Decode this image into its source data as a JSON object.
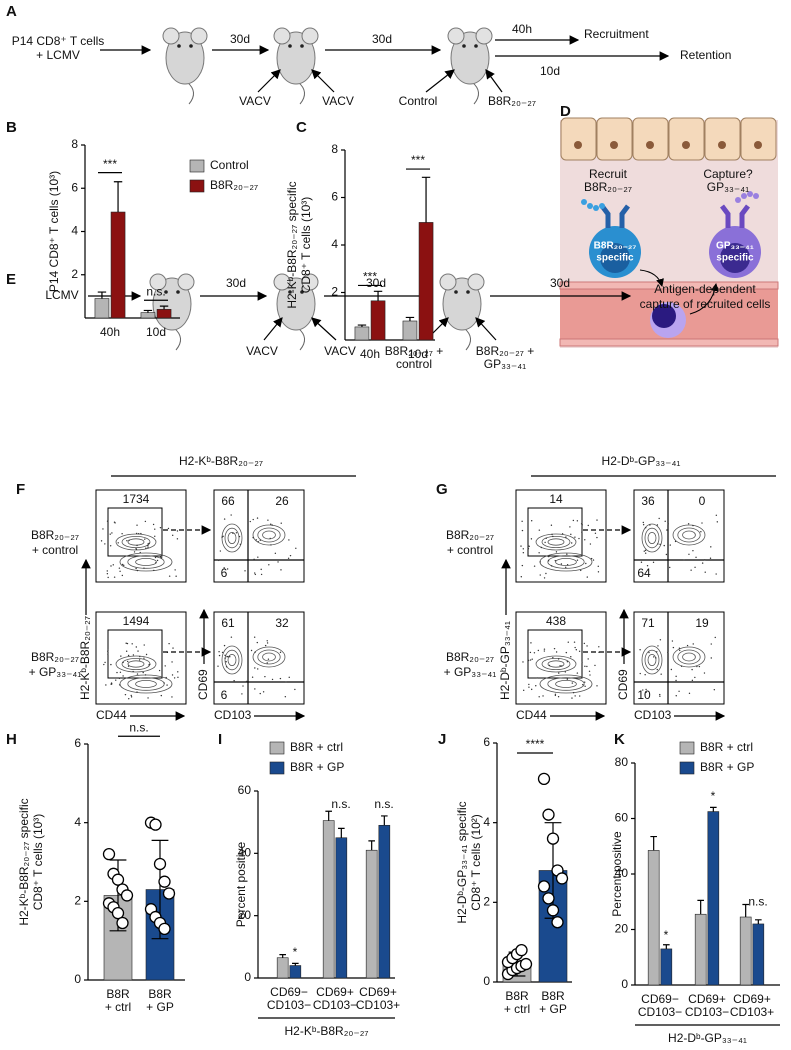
{
  "panel_a": {
    "label": "A",
    "input": [
      "P14 CD8⁺ T cells",
      "+ LCMV"
    ],
    "intervals": [
      "30d",
      "30d"
    ],
    "injections": [
      "VACV",
      "VACV",
      "Control",
      "B8R₂₀₋₂₇"
    ],
    "outcomes": [
      {
        "time": "40h",
        "name": "Recruitment"
      },
      {
        "time": "10d",
        "name": "Retention"
      }
    ]
  },
  "panel_d": {
    "label": "D",
    "left": [
      "Recruit",
      "B8R₂₀₋₂₇"
    ],
    "right": [
      "Capture?",
      "GP₃₃₋₄₁"
    ],
    "cells": [
      [
        "B8R₂₀₋₂₇",
        "specific"
      ],
      [
        "GP₃₃₋₄₁",
        "specific"
      ]
    ]
  },
  "panel_e": {
    "label": "E",
    "input": "LCMV",
    "intervals": [
      "30d",
      "30d",
      "30d"
    ],
    "injections": [
      [
        "VACV"
      ],
      [
        "VACV"
      ],
      [
        "B8R₂₀₋₂₇ +",
        "control"
      ],
      [
        "B8R₂₀₋₂₇ +",
        "GP₃₃₋₄₁"
      ]
    ],
    "outcome": [
      "Antigen-dependent",
      "capture of recruited cells"
    ]
  },
  "panel_f": {
    "label": "F",
    "title": "H2-Kᵇ-B8R₂₀₋₂₇",
    "rows": [
      {
        "label": [
          "B8R₂₀₋₂₇",
          "+ control"
        ],
        "gate": 1734,
        "quadrants": [
          66,
          26,
          6
        ]
      },
      {
        "label": [
          "B8R₂₀₋₂₇",
          "+ GP₃₃₋₄₁"
        ],
        "gate": 1494,
        "quadrants": [
          61,
          32,
          6
        ]
      }
    ],
    "x_axes": [
      "CD44",
      "CD103"
    ],
    "y_axes": [
      "H2-Kᵇ-B8R₂₀₋₂₇",
      "CD69"
    ]
  },
  "panel_g": {
    "label": "G",
    "title": "H2-Dᵇ-GP₃₃₋₄₁",
    "rows": [
      {
        "label": [
          "B8R₂₀₋₂₇",
          "+ control"
        ],
        "gate": 14,
        "quadrants": [
          36,
          0,
          64
        ]
      },
      {
        "label": [
          "B8R₂₀₋₂₇",
          "+ GP₃₃₋₄₁"
        ],
        "gate": 438,
        "quadrants": [
          71,
          19,
          10
        ]
      }
    ],
    "x_axes": [
      "CD44",
      "CD103"
    ],
    "y_axes": [
      "H2-Dᵇ-GP₃₃₋₄₁",
      "CD69"
    ]
  },
  "chart_data": [
    {
      "type": "bar",
      "panel": "B",
      "ylabel": [
        "P14 CD8⁺ T cells (10³)"
      ],
      "categories": [
        [
          "40h"
        ],
        [
          "10d"
        ]
      ],
      "series": [
        {
          "name": "Control",
          "color": "#b5b5b5",
          "values": [
            0.9,
            0.25
          ],
          "errors": [
            0.3,
            0.1
          ]
        },
        {
          "name": "B8R₂₀₋₂₇",
          "color": "#8b1111",
          "values": [
            4.9,
            0.4
          ],
          "errors": [
            1.4,
            0.15
          ]
        }
      ],
      "ylim": [
        0,
        8
      ],
      "yticks": [
        2,
        4,
        6,
        8
      ],
      "annotations": [
        "***",
        "n.s."
      ]
    },
    {
      "type": "bar",
      "panel": "C",
      "ylabel": [
        "H2-Kᵇ-B8R₂₀₋₂₇ specific",
        "CD8⁺ T cells (10³)"
      ],
      "categories": [
        [
          "40h"
        ],
        [
          "10d"
        ]
      ],
      "series": [
        {
          "name": "Control",
          "color": "#b5b5b5",
          "values": [
            0.55,
            0.8
          ],
          "errors": [
            0.08,
            0.15
          ]
        },
        {
          "name": "B8R₂₀₋₂₇",
          "color": "#8b1111",
          "values": [
            1.65,
            4.95
          ],
          "errors": [
            0.4,
            1.9
          ]
        }
      ],
      "ylim": [
        0,
        8
      ],
      "yticks": [
        2,
        4,
        6,
        8
      ],
      "annotations": [
        "***",
        "***"
      ]
    },
    {
      "type": "bar",
      "panel": "H",
      "ylabel": [
        "H2-Kᵇ-B8R₂₀₋₂₇ specific",
        "CD8⁺ T cells (10³)"
      ],
      "categories": [
        [
          "B8R",
          "+ ctrl"
        ],
        [
          "B8R",
          "+ GP"
        ]
      ],
      "series": [
        {
          "colors": [
            "#b5b5b5",
            "#1a4a8e"
          ],
          "values": [
            2.15,
            2.3
          ],
          "errors": [
            0.9,
            1.25
          ]
        }
      ],
      "points": [
        [
          3.2,
          2.7,
          2.55,
          2.3,
          2.15,
          1.95,
          1.85,
          1.7,
          1.45
        ],
        [
          4.0,
          3.95,
          2.95,
          2.5,
          2.2,
          1.8,
          1.6,
          1.45,
          1.3
        ]
      ],
      "ylim": [
        0,
        6
      ],
      "yticks": [
        0,
        2,
        4,
        6
      ],
      "annotations": [
        "n.s."
      ]
    },
    {
      "type": "bar",
      "panel": "I",
      "ylabel": [
        "Percent positive"
      ],
      "xlabel": "H2-Kᵇ-B8R₂₀₋₂₇",
      "categories": [
        [
          "CD69−",
          "CD103−"
        ],
        [
          "CD69+",
          "CD103−"
        ],
        [
          "CD69+",
          "CD103+"
        ]
      ],
      "series": [
        {
          "name": "B8R + ctrl",
          "color": "#b5b5b5",
          "values": [
            6.5,
            50.5,
            41
          ],
          "errors": [
            1,
            3,
            3
          ]
        },
        {
          "name": "B8R + GP",
          "color": "#1a4a8e",
          "values": [
            4,
            45,
            49
          ],
          "errors": [
            0.7,
            3,
            3
          ]
        }
      ],
      "ylim": [
        0,
        60
      ],
      "yticks": [
        0,
        20,
        40,
        60
      ],
      "annotations": [
        "*",
        "n.s.",
        "n.s."
      ]
    },
    {
      "type": "bar",
      "panel": "J",
      "ylabel": [
        "H2-Dᵇ-GP₃₃₋₄₁ specific",
        "CD8⁺ T cells (10²)"
      ],
      "categories": [
        [
          "B8R",
          "+ ctrl"
        ],
        [
          "B8R",
          "+ GP"
        ]
      ],
      "series": [
        {
          "colors": [
            "#b5b5b5",
            "#1a4a8e"
          ],
          "values": [
            0.45,
            2.8
          ],
          "errors": [
            0.3,
            1.2
          ]
        }
      ],
      "points": [
        [
          0.2,
          0.3,
          0.35,
          0.4,
          0.45,
          0.5,
          0.6,
          0.7,
          0.8
        ],
        [
          5.1,
          4.2,
          3.6,
          2.8,
          2.6,
          2.4,
          2.1,
          1.8,
          1.5
        ]
      ],
      "ylim": [
        0,
        6
      ],
      "yticks": [
        0,
        2,
        4,
        6
      ],
      "annotations": [
        "****"
      ]
    },
    {
      "type": "bar",
      "panel": "K",
      "ylabel": [
        "Percent positive"
      ],
      "xlabel": "H2-Dᵇ-GP₃₃₋₄₁",
      "categories": [
        [
          "CD69−",
          "CD103−"
        ],
        [
          "CD69+",
          "CD103−"
        ],
        [
          "CD69+",
          "CD103+"
        ]
      ],
      "series": [
        {
          "name": "B8R + ctrl",
          "color": "#b5b5b5",
          "values": [
            48.5,
            25.5,
            24.5
          ],
          "errors": [
            5,
            5,
            4.5
          ]
        },
        {
          "name": "B8R + GP",
          "color": "#1a4a8e",
          "values": [
            13,
            62.5,
            22
          ],
          "errors": [
            1.5,
            1.5,
            1.5
          ]
        }
      ],
      "ylim": [
        0,
        80
      ],
      "yticks": [
        0,
        20,
        40,
        60,
        80
      ],
      "annotations": [
        "*",
        "*",
        "n.s."
      ]
    }
  ]
}
